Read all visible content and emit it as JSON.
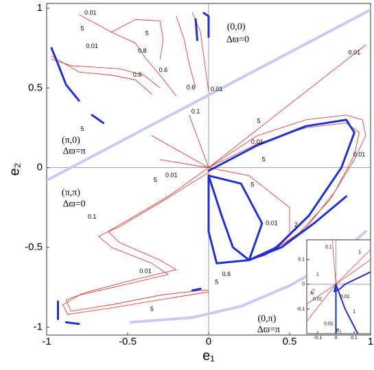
{
  "chart_data": [
    {
      "type": "line",
      "xlabel": "e₁",
      "ylabel": "e₂",
      "xlim": [
        -1,
        1
      ],
      "ylim": [
        -1.05,
        1.03
      ],
      "xticks": [
        -1,
        -0.5,
        0,
        0.5,
        1
      ],
      "yticks": [
        -1,
        -0.5,
        0,
        0.5,
        1
      ],
      "zero_lines": true,
      "series": [
        {
          "color": "#c9c9f2",
          "linewidth": 4,
          "x": [
            -1,
            1
          ],
          "values": [
            -0.08,
            0.99
          ]
        },
        {
          "color": "#c9c9f2",
          "linewidth": 4,
          "x": [
            -0.48,
            -0.1,
            0.2,
            0.5,
            0.75,
            0.97
          ],
          "values": [
            -0.97,
            -0.94,
            -0.87,
            -0.74,
            -0.6,
            -0.4
          ]
        },
        {
          "color": "#e8251f",
          "linewidth": 0.8,
          "x": [
            0,
            0.97
          ],
          "values": [
            0,
            0.77
          ]
        },
        {
          "color": "#e8251f",
          "linewidth": 0.8,
          "x": [
            0,
            0.3,
            0.6,
            0.85,
            0.95,
            0.97,
            0.9,
            0.75,
            0.55,
            0.35,
            0.25
          ],
          "values": [
            0,
            0.2,
            0.3,
            0.33,
            0.3,
            0.2,
            0.05,
            -0.2,
            -0.42,
            -0.55,
            -0.58
          ]
        },
        {
          "color": "#e8251f",
          "linewidth": 0.8,
          "x": [
            0,
            0.3,
            0.6,
            0.85,
            0.93,
            0.9,
            0.78,
            0.6,
            0.4,
            0.25
          ],
          "values": [
            0,
            0.15,
            0.25,
            0.28,
            0.22,
            0.08,
            -0.15,
            -0.38,
            -0.52,
            -0.58
          ]
        },
        {
          "color": "#e8251f",
          "linewidth": 0.8,
          "x": [
            0,
            -0.25,
            -0.5,
            -0.62,
            -0.55,
            -0.3,
            -0.2,
            -0.45,
            -0.75,
            -0.88,
            -0.85,
            -0.6,
            -0.3,
            -0.05,
            0
          ],
          "values": [
            0,
            -0.18,
            -0.33,
            -0.4,
            -0.47,
            -0.58,
            -0.64,
            -0.7,
            -0.78,
            -0.83,
            -0.9,
            -0.86,
            -0.8,
            -0.77,
            -0.77
          ]
        },
        {
          "color": "#e8251f",
          "linewidth": 0.8,
          "x": [
            0,
            -0.3,
            -0.55,
            -0.68,
            -0.6,
            -0.35,
            -0.25,
            -0.5,
            -0.8,
            -0.9,
            -0.87,
            -0.6,
            -0.25,
            0
          ],
          "values": [
            -0.03,
            -0.22,
            -0.37,
            -0.43,
            -0.5,
            -0.6,
            -0.67,
            -0.73,
            -0.8,
            -0.86,
            -0.92,
            -0.88,
            -0.82,
            -0.78
          ]
        },
        {
          "color": "#e8251f",
          "linewidth": 0.8,
          "x": [
            0,
            -0.35
          ],
          "values": [
            0,
            0.2
          ]
        },
        {
          "color": "#e8251f",
          "linewidth": 0.8,
          "x": [
            0,
            -0.12
          ],
          "values": [
            0,
            0.33
          ]
        },
        {
          "color": "#e8251f",
          "linewidth": 0.8,
          "x": [
            0,
            -0.3
          ],
          "values": [
            0,
            0.05
          ]
        },
        {
          "color": "#e8251f",
          "linewidth": 0.8,
          "x": [
            0,
            0.25,
            0.5,
            0.5,
            0.35,
            0.25
          ],
          "values": [
            0,
            -0.05,
            -0.25,
            -0.42,
            -0.55,
            -0.58
          ]
        },
        {
          "color": "#e8251f",
          "linewidth": 0.8,
          "x": [
            -0.8,
            -0.6,
            -0.45,
            -0.4,
            -0.3,
            -0.2
          ],
          "values": [
            0.96,
            0.85,
            0.78,
            0.7,
            0.58,
            0.45
          ]
        },
        {
          "color": "#e8251f",
          "linewidth": 0.8,
          "x": [
            -0.6,
            -0.45,
            -0.3,
            -0.28,
            -0.3
          ],
          "values": [
            0.85,
            0.93,
            0.92,
            0.8,
            0.68
          ]
        },
        {
          "color": "#e8251f",
          "linewidth": 0.8,
          "x": [
            -0.97,
            -0.85,
            -0.7,
            -0.55,
            -0.4,
            -0.3
          ],
          "values": [
            0.68,
            0.64,
            0.63,
            0.62,
            0.58,
            0.5
          ]
        },
        {
          "color": "#e8251f",
          "linewidth": 0.8,
          "x": [
            -0.97,
            -0.8,
            -0.6,
            -0.45,
            -0.35
          ],
          "values": [
            0.7,
            0.6,
            0.58,
            0.55,
            0.46
          ]
        },
        {
          "color": "#e8251f",
          "linewidth": 0.8,
          "x": [
            -0.2,
            -0.15,
            -0.12,
            -0.08
          ],
          "values": [
            0.95,
            0.8,
            0.65,
            0.5
          ]
        },
        {
          "color": "#e8251f",
          "linewidth": 0.8,
          "x": [
            -0.1,
            -0.05,
            -0.03,
            0
          ],
          "values": [
            0.97,
            0.85,
            0.7,
            0.48
          ]
        },
        {
          "color": "#1f2fd6",
          "linewidth": 3,
          "x": [
            -0.03,
            0,
            0,
            0
          ],
          "values": [
            0.97,
            0.95,
            0.9,
            0.82
          ]
        },
        {
          "color": "#1f2fd6",
          "linewidth": 3,
          "x": [
            -0.97,
            -0.93,
            -0.88,
            -0.8
          ],
          "values": [
            0.75,
            0.65,
            0.52,
            0.42
          ]
        },
        {
          "color": "#1f2fd6",
          "linewidth": 3,
          "x": [
            -0.72,
            -0.65
          ],
          "values": [
            0.33,
            0.28
          ]
        },
        {
          "color": "#1f2fd6",
          "linewidth": 3,
          "x": [
            -0.08,
            -0.07
          ],
          "values": [
            0.93,
            0.8
          ]
        },
        {
          "color": "#1f2fd6",
          "linewidth": 3,
          "x": [
            0,
            0.3,
            0.6,
            0.85,
            0.9,
            0.82,
            0.62,
            0.42,
            0.25
          ],
          "values": [
            -0.02,
            0.14,
            0.26,
            0.3,
            0.22,
            0,
            -0.3,
            -0.5,
            -0.58
          ]
        },
        {
          "color": "#1f2fd6",
          "linewidth": 3,
          "x": [
            0,
            0.08,
            0.15,
            0.25
          ],
          "values": [
            -0.05,
            -0.3,
            -0.5,
            -0.58
          ]
        },
        {
          "color": "#1f2fd6",
          "linewidth": 3,
          "x": [
            0,
            0.2,
            0.33,
            0.25
          ],
          "values": [
            -0.05,
            -0.1,
            -0.35,
            -0.58
          ]
        },
        {
          "color": "#1f2fd6",
          "linewidth": 3,
          "x": [
            0,
            0,
            0.05,
            0.25
          ],
          "values": [
            -0.05,
            -0.4,
            -0.6,
            -0.58
          ]
        },
        {
          "color": "#1f2fd6",
          "linewidth": 3,
          "x": [
            0.25,
            0.45,
            0.65,
            0.85
          ],
          "values": [
            -0.58,
            -0.5,
            -0.35,
            -0.18
          ]
        },
        {
          "color": "#1f2fd6",
          "linewidth": 3,
          "x": [
            -0.93,
            -0.93
          ],
          "values": [
            -0.84,
            -0.95
          ]
        },
        {
          "color": "#1f2fd6",
          "linewidth": 3,
          "x": [
            -0.88,
            -0.8
          ],
          "values": [
            -0.97,
            -0.98
          ]
        },
        {
          "color": "#1f2fd6",
          "linewidth": 3,
          "x": [
            -0.1,
            -0.05
          ],
          "values": [
            -0.77,
            -0.76
          ]
        }
      ],
      "annotations": [
        {
          "text": "0.01",
          "x": -0.73,
          "y": 0.97
        },
        {
          "text": "5",
          "x": -0.78,
          "y": 0.87
        },
        {
          "text": "5",
          "x": -0.38,
          "y": 0.84
        },
        {
          "text": "0.01",
          "x": -0.72,
          "y": 0.76
        },
        {
          "text": "0.8",
          "x": -0.41,
          "y": 0.73
        },
        {
          "text": "0.8",
          "x": -0.44,
          "y": 0.58
        },
        {
          "text": "0.6",
          "x": -0.28,
          "y": 0.61
        },
        {
          "text": "0.6",
          "x": -0.11,
          "y": 0.5
        },
        {
          "text": "0.01",
          "x": 0.05,
          "y": 0.49
        },
        {
          "text": "5",
          "x": -0.78,
          "y": 0.24
        },
        {
          "text": "0.1",
          "x": -0.08,
          "y": 0.35
        },
        {
          "text": "5",
          "x": 0.31,
          "y": 0.29
        },
        {
          "text": "0.01",
          "x": 0.3,
          "y": 0.16
        },
        {
          "text": "5",
          "x": 0.34,
          "y": 0.05
        },
        {
          "text": "0.01",
          "x": 0.93,
          "y": 0.08
        },
        {
          "text": "0.01",
          "x": 0.9,
          "y": 0.72
        },
        {
          "text": "5",
          "x": -0.33,
          "y": -0.08
        },
        {
          "text": "0.01",
          "x": -0.23,
          "y": -0.05
        },
        {
          "text": "0.1",
          "x": -0.72,
          "y": -0.31
        },
        {
          "text": "5",
          "x": 0.27,
          "y": -0.11
        },
        {
          "text": "0.01",
          "x": 0.39,
          "y": -0.35
        },
        {
          "text": "2",
          "x": 0.54,
          "y": -0.36
        },
        {
          "text": "0.6",
          "x": 0.11,
          "y": -0.67
        },
        {
          "text": "5",
          "x": 0.05,
          "y": -0.72
        },
        {
          "text": "0.01",
          "x": -0.39,
          "y": -0.65
        },
        {
          "text": "5",
          "x": -0.35,
          "y": -0.89
        }
      ],
      "region_labels": [
        {
          "text": "(0,0)",
          "x": 0.17,
          "y": 0.88
        },
        {
          "text": "Δϖ=0",
          "x": 0.18,
          "y": 0.8
        },
        {
          "text": "(π,0)",
          "x": -0.85,
          "y": 0.17
        },
        {
          "text": "Δϖ=π",
          "x": -0.83,
          "y": 0.1
        },
        {
          "text": "(π,π)",
          "x": -0.85,
          "y": -0.16
        },
        {
          "text": "Δϖ=0",
          "x": -0.83,
          "y": -0.23
        },
        {
          "text": "(0,π)",
          "x": 0.36,
          "y": -0.95
        },
        {
          "text": "Δϖ=π",
          "x": 0.37,
          "y": -1.02
        }
      ]
    },
    {
      "type": "line",
      "xlabel": "e₁",
      "ylabel": "e₂",
      "xlim": [
        -0.16,
        0.19
      ],
      "ylim": [
        -0.2,
        0.18
      ],
      "xticks": [
        -0.1,
        0,
        0.1
      ],
      "yticks": [
        -0.1,
        0,
        0.1
      ],
      "zero_lines": true,
      "series": [
        {
          "color": "#e8251f",
          "linewidth": 0.7,
          "x": [
            -0.16,
            0
          ],
          "values": [
            -0.15,
            0
          ]
        },
        {
          "color": "#e8251f",
          "linewidth": 0.7,
          "x": [
            -0.16,
            0
          ],
          "values": [
            -0.08,
            0
          ]
        },
        {
          "color": "#e8251f",
          "linewidth": 0.7,
          "x": [
            0,
            0.19
          ],
          "values": [
            0,
            0.14
          ]
        },
        {
          "color": "#e8251f",
          "linewidth": 0.7,
          "x": [
            0,
            0.19
          ],
          "values": [
            0,
            0.1
          ]
        },
        {
          "color": "#e8251f",
          "linewidth": 0.7,
          "x": [
            -0.02,
            0
          ],
          "values": [
            0.18,
            0
          ]
        },
        {
          "color": "#1f2fd6",
          "linewidth": 2,
          "x": [
            0,
            -0.01,
            0.02,
            0.05,
            0.19
          ],
          "values": [
            0,
            -0.03,
            -0.02,
            0,
            0.05
          ]
        },
        {
          "color": "#1f2fd6",
          "linewidth": 2,
          "x": [
            0,
            0.05,
            0.12
          ],
          "values": [
            0,
            -0.1,
            -0.2
          ]
        },
        {
          "color": "#1f2fd6",
          "linewidth": 2,
          "x": [
            0,
            0
          ],
          "values": [
            0,
            -0.2
          ]
        }
      ],
      "annotations": [
        {
          "text": "0.1",
          "x": -0.04,
          "y": 0.15
        },
        {
          "text": "1",
          "x": -0.1,
          "y": 0.04
        },
        {
          "text": "1",
          "x": 0.13,
          "y": 0.13
        },
        {
          "text": "0.01",
          "x": -0.1,
          "y": -0.06
        },
        {
          "text": "0.01",
          "x": 0.05,
          "y": -0.05
        },
        {
          "text": "1",
          "x": 0.1,
          "y": -0.11
        },
        {
          "text": "0.01",
          "x": -0.04,
          "y": -0.16
        }
      ],
      "region_labels": []
    }
  ]
}
